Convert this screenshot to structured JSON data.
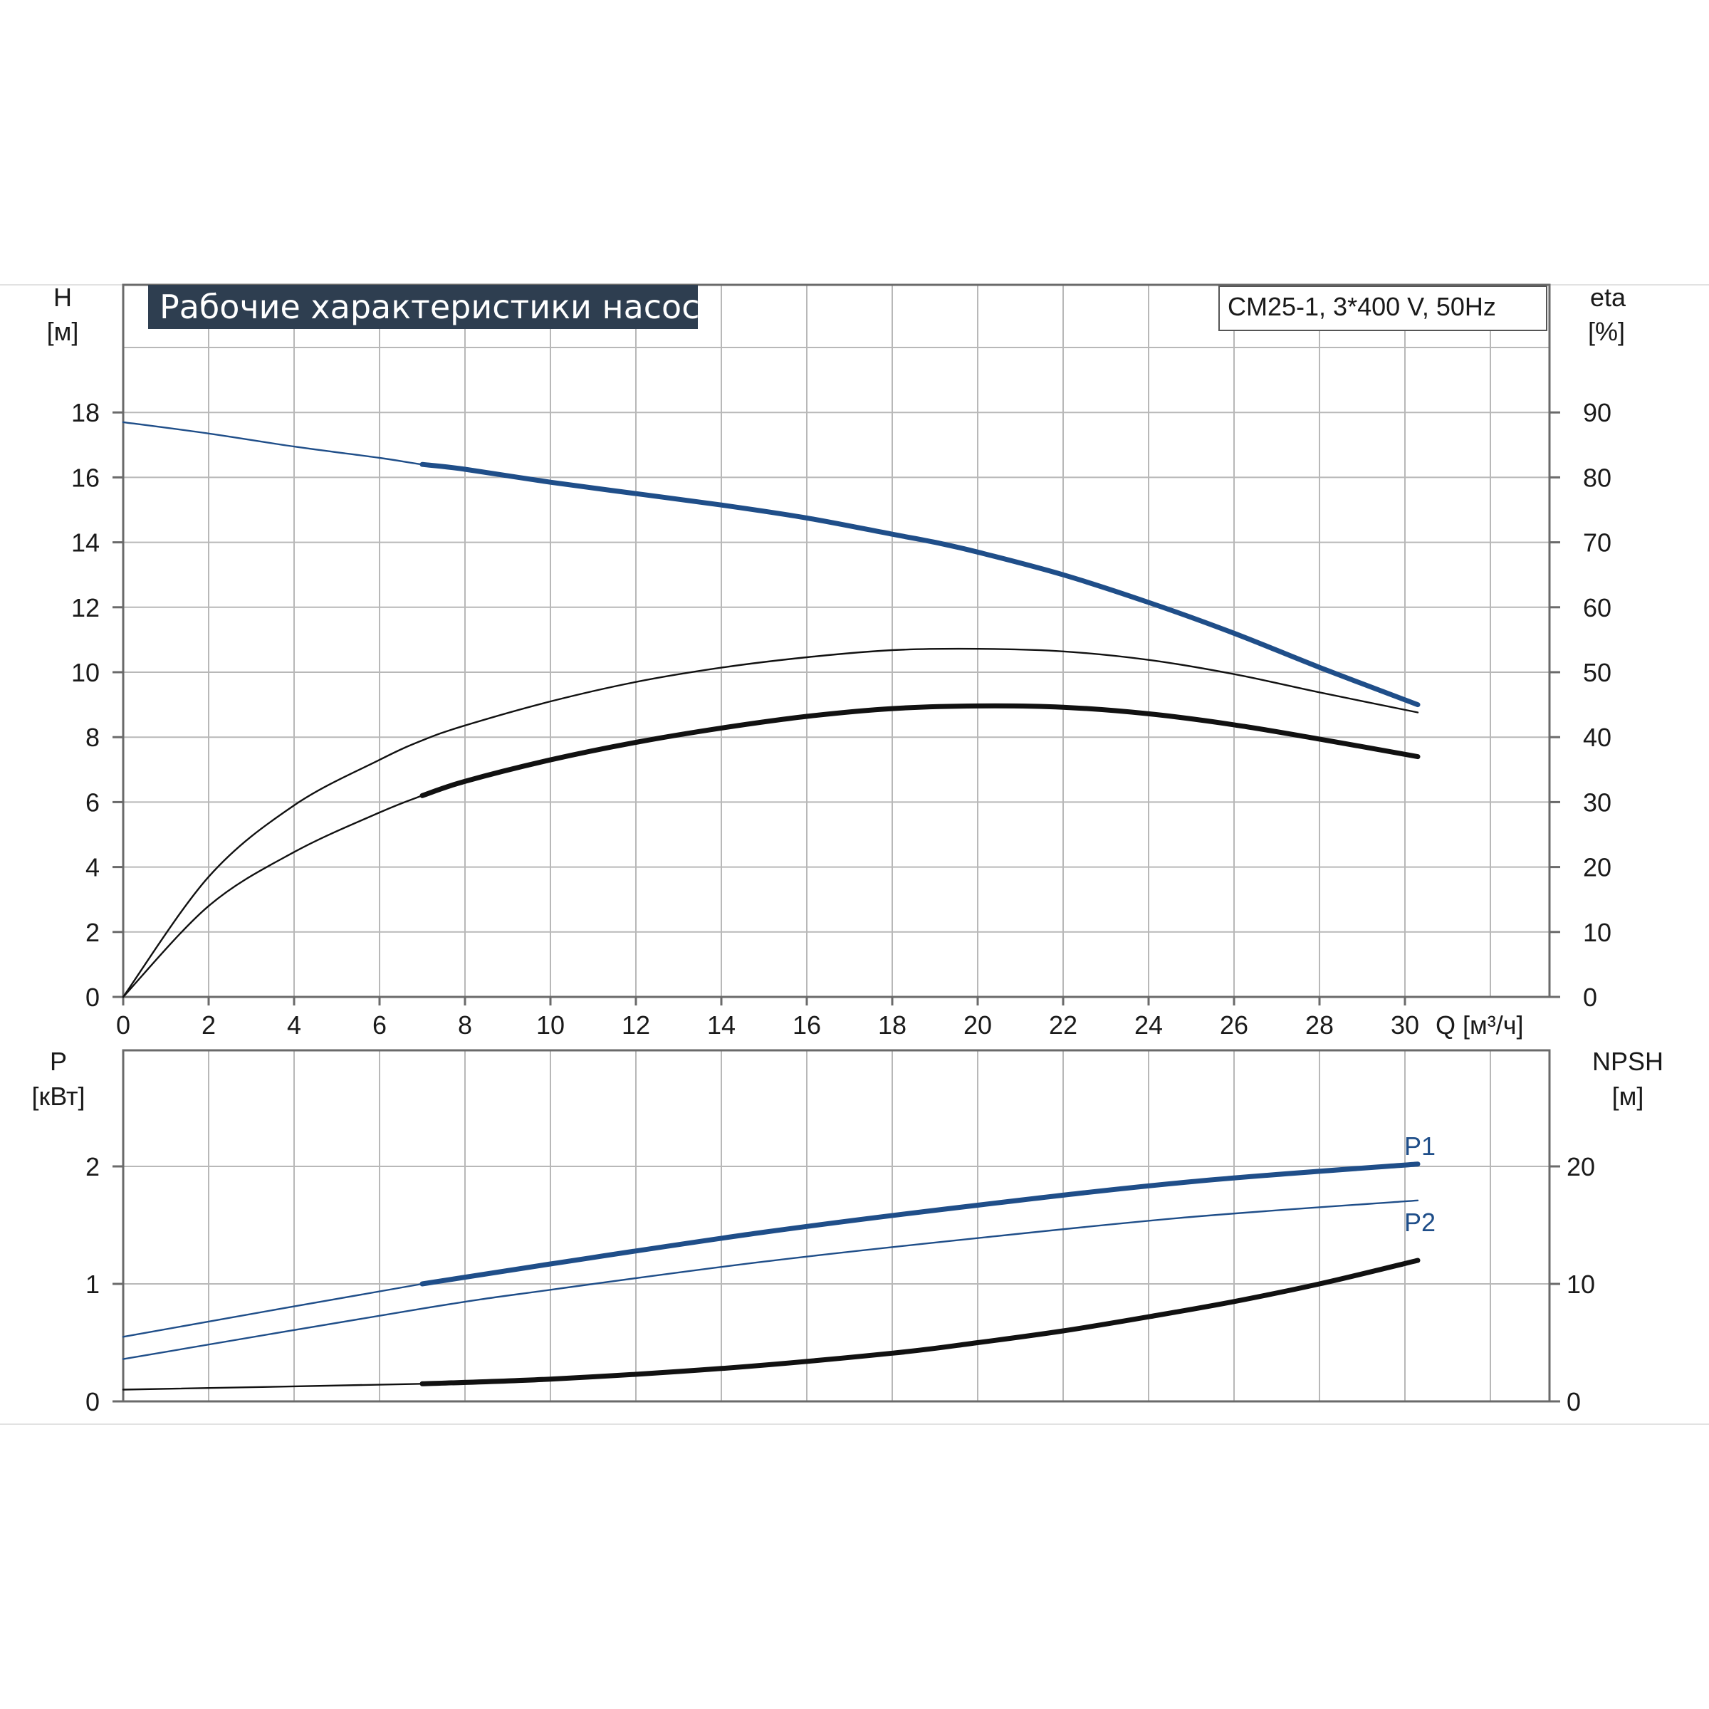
{
  "title": "Рабочие характеристики насоса",
  "model_label": "CM25-1, 3*400 V, 50Hz",
  "colors": {
    "blue": "#1f4e89",
    "black": "#111111",
    "title_bg": "#2e3e50",
    "grid": "#b8b8b8"
  },
  "chart_data": [
    {
      "id": "head_efficiency",
      "type": "line",
      "title": "Рабочие характеристики насоса",
      "xlabel": "Q [м³/ч]",
      "x_ticks": [
        "0",
        "2",
        "4",
        "6",
        "8",
        "10",
        "12",
        "14",
        "16",
        "18",
        "20",
        "22",
        "24",
        "26",
        "28",
        "30"
      ],
      "xlim": [
        0,
        33
      ],
      "ylim": [
        0,
        20
      ],
      "y_left_label": "H",
      "y_left_unit": "[м]",
      "y_left_ticks": [
        "0",
        "2",
        "4",
        "6",
        "8",
        "10",
        "12",
        "14",
        "16",
        "18"
      ],
      "y_right_label": "eta",
      "y_right_unit": "[%]",
      "y_right_ticks": [
        "0",
        "10",
        "20",
        "30",
        "40",
        "50",
        "60",
        "70",
        "80",
        "90"
      ],
      "y_right_lim": [
        0,
        100
      ],
      "grid": true,
      "series": [
        {
          "key": "H",
          "axis": "left",
          "color": "#1f4e89",
          "bold_from": 7,
          "x": [
            0,
            2,
            4,
            6,
            7,
            8,
            10,
            12,
            14,
            16,
            18,
            19,
            20,
            22,
            24,
            26,
            28,
            30.3
          ],
          "y": [
            17.7,
            17.35,
            16.95,
            16.6,
            16.4,
            16.25,
            15.85,
            15.5,
            15.15,
            14.75,
            14.25,
            14.0,
            13.7,
            13.0,
            12.15,
            11.2,
            10.15,
            9.0
          ]
        },
        {
          "key": "eta_pump",
          "axis": "right",
          "color": "#111111",
          "bold_from": 99,
          "x": [
            0,
            2,
            4,
            6,
            7,
            8,
            10,
            12,
            14,
            16,
            18,
            20,
            22,
            24,
            26,
            28,
            30.3
          ],
          "y": [
            0,
            18.5,
            29.5,
            36.5,
            39.5,
            41.8,
            45.5,
            48.5,
            50.7,
            52.3,
            53.4,
            53.6,
            53.2,
            51.9,
            49.7,
            46.9,
            43.8
          ]
        },
        {
          "key": "eta_total",
          "axis": "right",
          "color": "#111111",
          "bold_from": 7,
          "x": [
            0,
            2,
            4,
            6,
            7,
            8,
            10,
            12,
            14,
            16,
            18,
            20,
            22,
            24,
            26,
            28,
            30.3
          ],
          "y": [
            0,
            14,
            22.3,
            28.4,
            31,
            33.2,
            36.5,
            39.2,
            41.4,
            43.2,
            44.4,
            44.8,
            44.6,
            43.6,
            41.9,
            39.7,
            37
          ]
        }
      ]
    },
    {
      "id": "power_npsh",
      "type": "line",
      "xlim": [
        0,
        33
      ],
      "ylim": [
        0,
        3
      ],
      "y_left_label": "P",
      "y_left_unit": "[кВт]",
      "y_left_ticks": [
        "0",
        "1",
        "2"
      ],
      "y_right_label": "NPSH",
      "y_right_unit": "[м]",
      "y_right_ticks": [
        "0",
        "10",
        "20"
      ],
      "y_right_lim": [
        0,
        30
      ],
      "grid": true,
      "series": [
        {
          "name": "P1",
          "key": "P1",
          "axis": "left",
          "color": "#1f4e89",
          "bold_from": 7,
          "x": [
            0,
            7,
            10,
            15,
            20,
            25,
            30.3
          ],
          "y": [
            0.55,
            1.0,
            1.17,
            1.44,
            1.67,
            1.87,
            2.02
          ]
        },
        {
          "name": "P2",
          "key": "P2",
          "axis": "left",
          "color": "#1f4e89",
          "bold_from": 99,
          "x": [
            0,
            7,
            10,
            15,
            20,
            25,
            30.3
          ],
          "y": [
            0.36,
            0.79,
            0.95,
            1.19,
            1.39,
            1.57,
            1.71
          ]
        },
        {
          "key": "NPSH",
          "axis": "right",
          "color": "#111111",
          "bold_from": 7,
          "x": [
            0,
            7,
            10,
            14,
            18,
            20,
            22,
            24,
            26,
            28,
            30.3
          ],
          "y": [
            1.0,
            1.5,
            1.9,
            2.8,
            4.1,
            5.0,
            6.0,
            7.2,
            8.5,
            10.0,
            12.0
          ]
        }
      ]
    }
  ]
}
